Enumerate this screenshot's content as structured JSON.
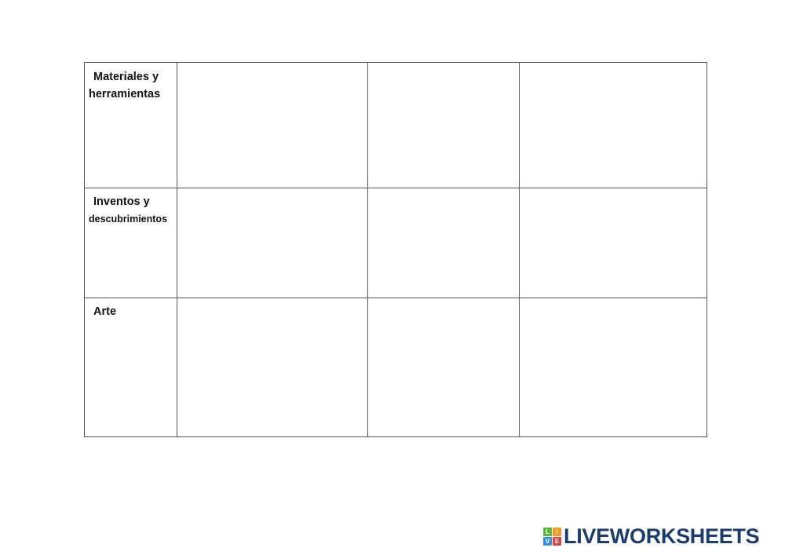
{
  "table": {
    "rows": [
      {
        "label_lines": [
          "Materiales y",
          "herramientas"
        ]
      },
      {
        "label_lines": [
          "Inventos y",
          "descubrimientos"
        ]
      },
      {
        "label_lines": [
          "Arte"
        ]
      }
    ]
  },
  "logo": {
    "text": "LIVEWORKSHEETS",
    "squares": [
      {
        "letter": "L",
        "color": "#5cb83c"
      },
      {
        "letter": "I",
        "color": "#f39a1e"
      },
      {
        "letter": "V",
        "color": "#3a8fd9"
      },
      {
        "letter": "E",
        "color": "#e2403a"
      }
    ],
    "color": "#1d3c6e"
  }
}
